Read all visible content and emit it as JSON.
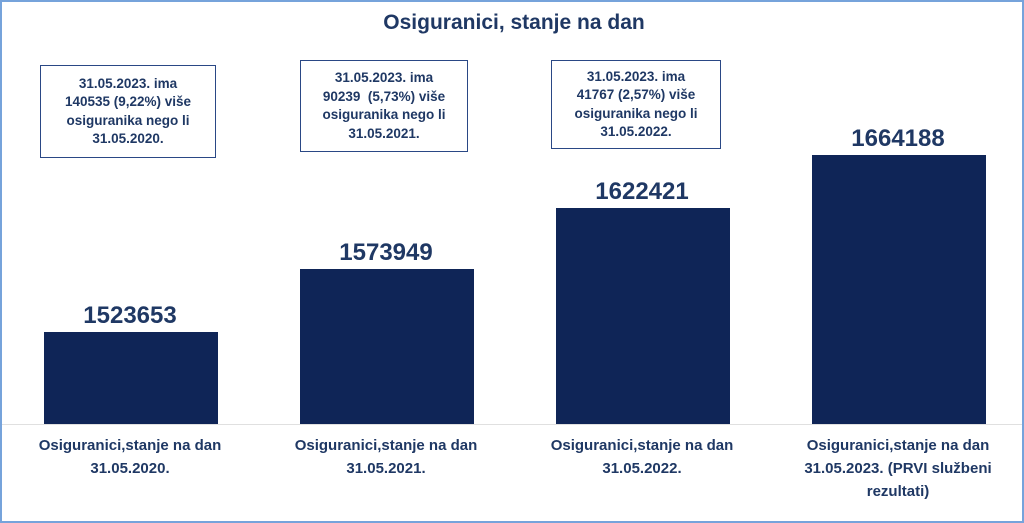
{
  "title": "Osiguranici, stanje na dan",
  "colors": {
    "bar_fill": "#0F2557",
    "text_navy": "#1F3864",
    "frame_border": "#76A3DB",
    "annotation_border": "#2A4885",
    "axis_line": "#E0E0E0",
    "background": "#FFFFFF"
  },
  "annotations": [
    {
      "text": "31.05.2023. ima\n140535 (9,22%) više\nosiguranika nego li\n31.05.2020."
    },
    {
      "text": "31.05.2023. ima\n90239  (5,73%) više\nosiguranika nego li\n31.05.2021."
    },
    {
      "text": "31.05.2023. ima\n41767 (2,57%) više\nosiguranika nego li\n31.05.2022."
    }
  ],
  "columns": [
    {
      "value_label": "1523653",
      "axis_label": "Osiguranici,stanje na dan\n31.05.2020."
    },
    {
      "value_label": "1573949",
      "axis_label": "Osiguranici,stanje na dan\n31.05.2021."
    },
    {
      "value_label": "1622421",
      "axis_label": "Osiguranici,stanje na dan\n31.05.2022."
    },
    {
      "value_label": "1664188",
      "axis_label": "Osiguranici,stanje na dan\n31.05.2023. (PRVI službeni\nrezultati)"
    }
  ],
  "chart_data": {
    "type": "bar",
    "title": "Osiguranici, stanje na dan",
    "categories": [
      "Osiguranici,stanje na dan 31.05.2020.",
      "Osiguranici,stanje na dan 31.05.2021.",
      "Osiguranici,stanje na dan 31.05.2022.",
      "Osiguranici,stanje na dan 31.05.2023. (PRVI službeni rezultati)"
    ],
    "values": [
      1523653,
      1573949,
      1622421,
      1664188
    ],
    "data_labels": [
      "1523653",
      "1573949",
      "1622421",
      "1664188"
    ],
    "xlabel": "",
    "ylabel": "",
    "ylim": [
      1450000,
      1670000
    ],
    "grid": false,
    "legend": false,
    "annotations": [
      "31.05.2023. ima 140535 (9,22%) više osiguranika nego li 31.05.2020.",
      "31.05.2023. ima 90239 (5,73%) više osiguranika nego li 31.05.2021.",
      "31.05.2023. ima 41767 (2,57%) više osiguranika nego li 31.05.2022."
    ]
  }
}
